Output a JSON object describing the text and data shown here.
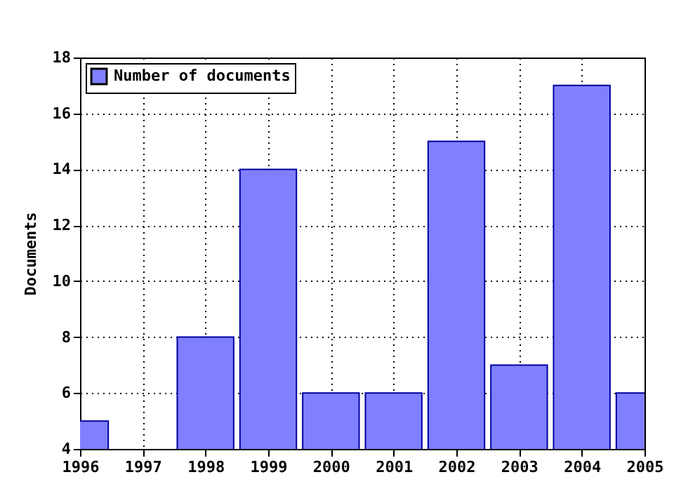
{
  "chart_data": {
    "type": "bar",
    "ylabel": "Documents",
    "x": [
      1996,
      1997,
      1998,
      1999,
      2000,
      2001,
      2002,
      2003,
      2004,
      2005
    ],
    "series": [
      {
        "name": "Number of documents",
        "color": "#8080ff",
        "values": [
          5,
          null,
          8,
          14,
          6,
          6,
          15,
          7,
          17,
          6
        ]
      }
    ],
    "xlim": [
      1996,
      2005
    ],
    "xticks": [
      1996,
      1997,
      1998,
      1999,
      2000,
      2001,
      2002,
      2003,
      2004,
      2005
    ],
    "ylim": [
      4,
      18
    ],
    "yticks": [
      4,
      6,
      8,
      10,
      12,
      14,
      16,
      18
    ],
    "grid": true,
    "legend": "top left"
  }
}
